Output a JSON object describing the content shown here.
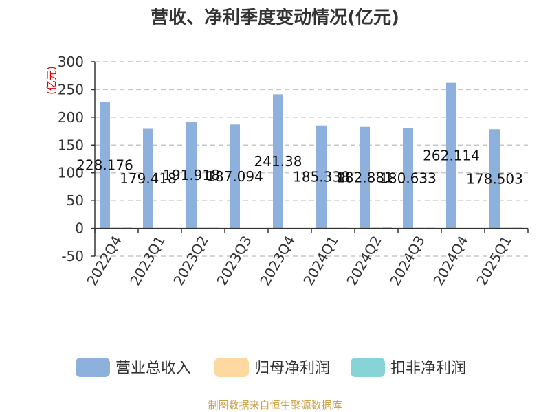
{
  "chart_data": {
    "type": "bar",
    "title": "营收、净利季度变动情况(亿元)",
    "ylabel": "(亿元)",
    "xlabel": "",
    "categories": [
      "2022Q4",
      "2023Q1",
      "2023Q2",
      "2023Q3",
      "2023Q4",
      "2024Q1",
      "2024Q2",
      "2024Q3",
      "2024Q4",
      "2025Q1"
    ],
    "series": [
      {
        "name": "营业总收入",
        "color": "#8eb0dc",
        "values": [
          228.176,
          179.418,
          191.918,
          187.094,
          241.38,
          185.338,
          182.881,
          180.633,
          262.114,
          178.503
        ],
        "labels": [
          "228.176",
          "179.418",
          "191.918",
          "187.094",
          "241.38",
          "185.338",
          "182.881",
          "180.633",
          "262.114",
          "178.503"
        ]
      },
      {
        "name": "归母净利润",
        "color": "#fdd9a0",
        "values": [
          1.8,
          1.1,
          1.6,
          0.9,
          0.5,
          1.3,
          2.1,
          1.4,
          -0.6,
          1.6
        ]
      },
      {
        "name": "扣非净利润",
        "color": "#86d4d8",
        "values": [
          1.5,
          0.9,
          1.3,
          0.7,
          0.3,
          1.1,
          1.8,
          1.2,
          -1.2,
          1.4
        ]
      }
    ],
    "ylim": [
      -50,
      300
    ],
    "yticks": [
      300,
      250,
      200,
      150,
      100,
      50,
      0,
      -50
    ],
    "grid": true,
    "legend_position": "bottom",
    "source": "制图数据来自恒生聚源数据库"
  }
}
